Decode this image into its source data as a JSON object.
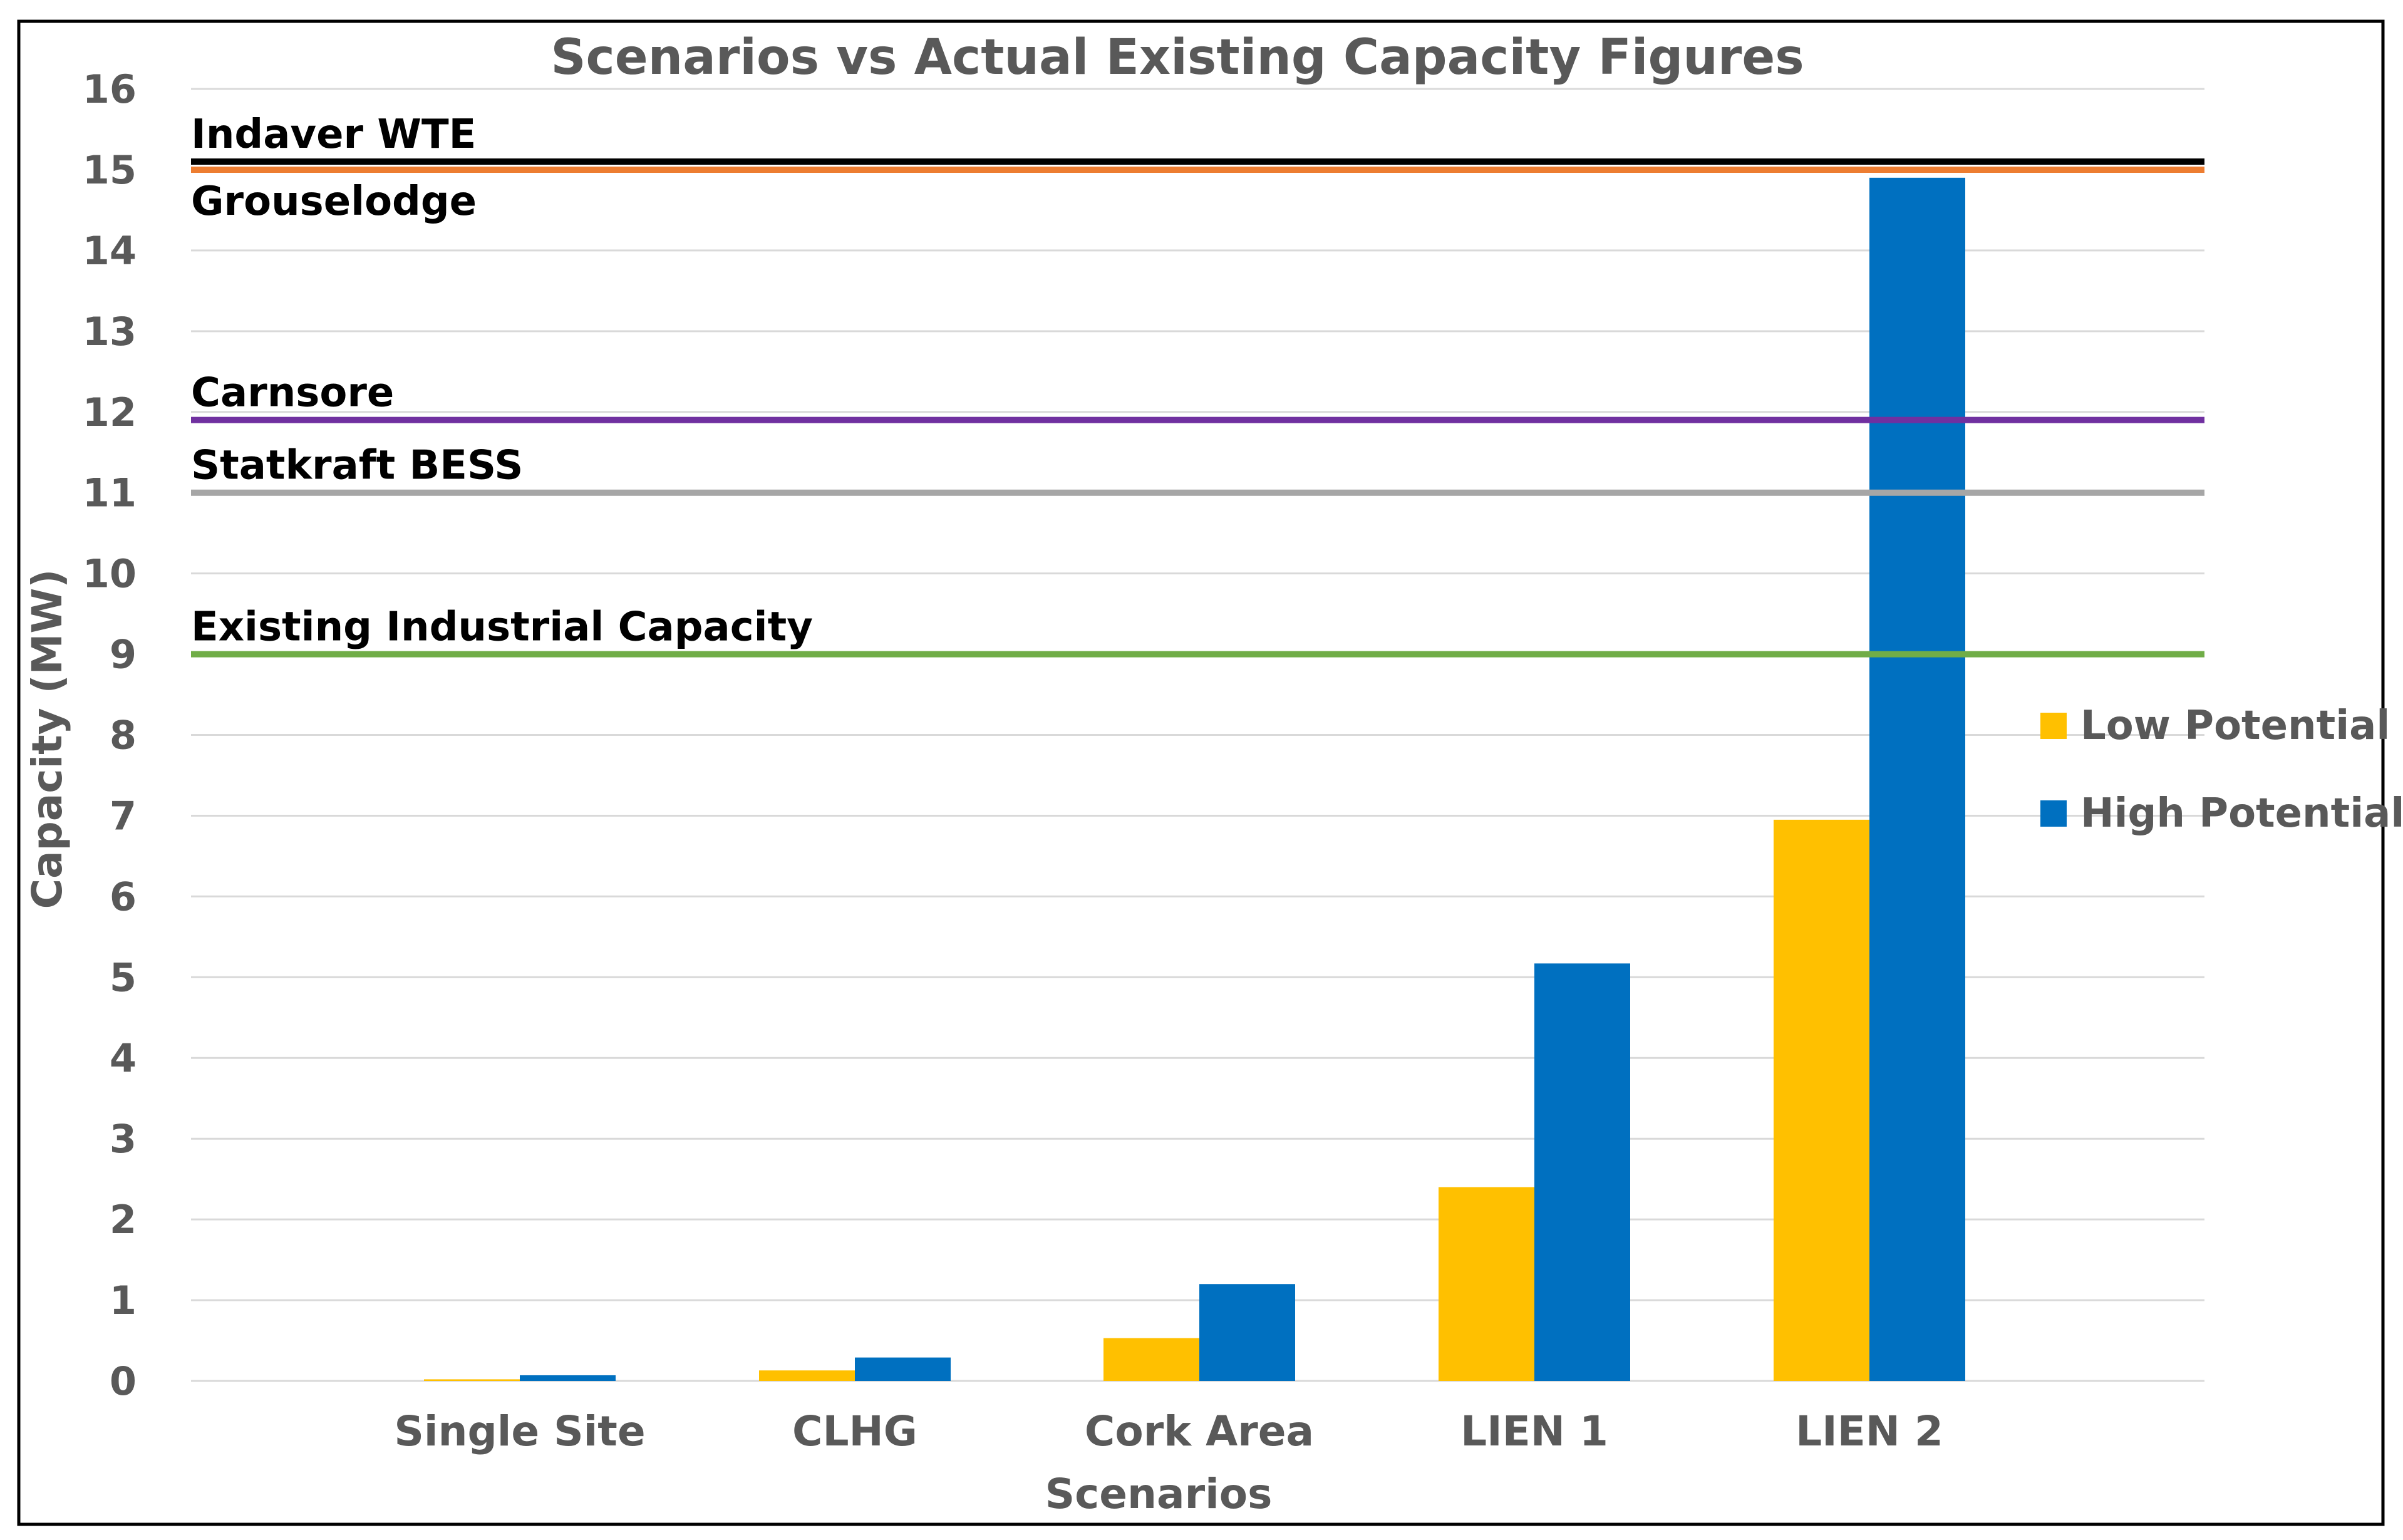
{
  "chart_data": {
    "type": "bar",
    "title": "Scenarios vs Actual Existing Capacity Figures",
    "xlabel": "Scenarios",
    "ylabel": "Capacity (MW)",
    "ylim": [
      0,
      16
    ],
    "yticks": [
      "0",
      "1",
      "2",
      "3",
      "4",
      "5",
      "6",
      "7",
      "8",
      "9",
      "10",
      "11",
      "12",
      "13",
      "14",
      "15",
      "16"
    ],
    "grid": true,
    "legend_position": "right",
    "categories": [
      "Single Site",
      "CLHG",
      "Cork Area",
      "LIEN 1",
      "LIEN 2"
    ],
    "series": [
      {
        "name": "Low Potential",
        "color": "#FFC000",
        "values": [
          0.02,
          0.13,
          0.53,
          2.4,
          6.95
        ]
      },
      {
        "name": "High Potential",
        "color": "#0070C0",
        "values": [
          0.07,
          0.29,
          1.2,
          5.17,
          14.9
        ]
      }
    ],
    "reference_lines": [
      {
        "label": "Indaver WTE",
        "value": 15.1,
        "color": "#000000",
        "label_side": "above"
      },
      {
        "label": "Grouselodge",
        "value": 15.0,
        "color": "#ED7D31",
        "label_side": "below"
      },
      {
        "label": "Carnsore",
        "value": 11.9,
        "color": "#7030A0",
        "label_side": "above"
      },
      {
        "label": "Statkraft BESS",
        "value": 11.0,
        "color": "#A6A6A6",
        "label_side": "above"
      },
      {
        "label": "Existing Industrial Capacity",
        "value": 9.0,
        "color": "#70AD47",
        "label_side": "above"
      }
    ]
  }
}
